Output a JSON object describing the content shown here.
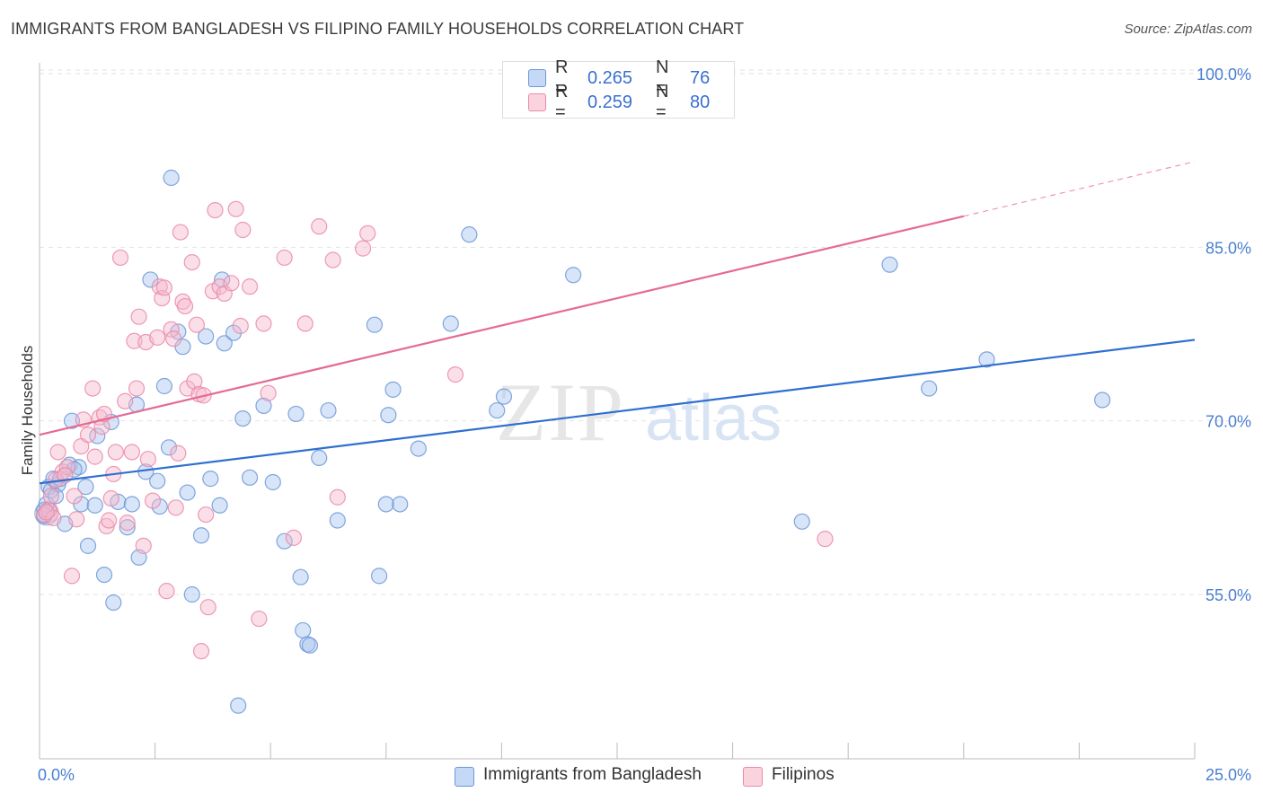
{
  "title": "IMMIGRANTS FROM BANGLADESH VS FILIPINO FAMILY HOUSEHOLDS CORRELATION CHART",
  "source": "Source: ZipAtlas.com",
  "watermark": {
    "zip": "ZIP",
    "atlas": "atlas"
  },
  "colors": {
    "blue_fill": "#a8c4ee",
    "blue_stroke": "#6b98d8",
    "blue_line": "#2f6fd0",
    "pink_fill": "#f6b8cc",
    "pink_stroke": "#e98aa8",
    "pink_line": "#e56a93",
    "axis_label": "#4a7fd0",
    "grid": "#e2e2e2"
  },
  "legend": {
    "rows": [
      {
        "r_label": "R =",
        "r_value": "0.265",
        "n_label": "N =",
        "n_value": "76",
        "color": "#a8c4ee"
      },
      {
        "r_label": "R =",
        "r_value": "0.259",
        "n_label": "N =",
        "n_value": "80",
        "color": "#f6b8cc"
      }
    ]
  },
  "bottom_legend": [
    {
      "label": "Immigrants from Bangladesh",
      "color": "#a8c4ee"
    },
    {
      "label": "Filipinos",
      "color": "#f6b8cc"
    }
  ],
  "chart_data": {
    "type": "scatter",
    "title": "IMMIGRANTS FROM BANGLADESH VS FILIPINO FAMILY HOUSEHOLDS CORRELATION CHART",
    "xlabel": "",
    "ylabel": "Family Households",
    "xlim": [
      0,
      25
    ],
    "ylim": [
      40,
      102
    ],
    "x_tick_labels": [
      "0.0%",
      "25.0%"
    ],
    "y_ticks": [
      55,
      70,
      85,
      100
    ],
    "y_tick_labels": [
      "55.0%",
      "70.0%",
      "85.0%",
      "100.0%"
    ],
    "grid": true,
    "legend_position": "top-center",
    "series": [
      {
        "name": "Immigrants from Bangladesh",
        "r": 0.265,
        "n": 76,
        "trend": {
          "x": [
            0,
            25
          ],
          "y": [
            64.6,
            77.0
          ],
          "dashed_from_x": null
        },
        "points": [
          [
            0.1,
            62.3
          ],
          [
            0.15,
            62.8
          ],
          [
            0.2,
            64.3
          ],
          [
            0.25,
            64.0
          ],
          [
            0.3,
            65.0
          ],
          [
            0.4,
            64.5
          ],
          [
            0.45,
            65.0
          ],
          [
            0.55,
            61.1
          ],
          [
            0.65,
            66.2
          ],
          [
            0.7,
            70.0
          ],
          [
            0.85,
            66.0
          ],
          [
            0.9,
            62.8
          ],
          [
            1.0,
            64.3
          ],
          [
            1.05,
            59.2
          ],
          [
            1.2,
            62.7
          ],
          [
            1.25,
            68.7
          ],
          [
            1.4,
            56.7
          ],
          [
            1.55,
            69.9
          ],
          [
            1.6,
            54.3
          ],
          [
            1.7,
            63.0
          ],
          [
            1.9,
            60.8
          ],
          [
            2.0,
            62.8
          ],
          [
            2.1,
            71.4
          ],
          [
            2.15,
            58.2
          ],
          [
            2.3,
            65.6
          ],
          [
            2.4,
            82.2
          ],
          [
            2.55,
            64.8
          ],
          [
            2.6,
            62.6
          ],
          [
            2.7,
            73.0
          ],
          [
            2.8,
            67.7
          ],
          [
            2.85,
            91.0
          ],
          [
            3.0,
            77.7
          ],
          [
            3.1,
            76.4
          ],
          [
            3.2,
            63.8
          ],
          [
            3.3,
            55.0
          ],
          [
            3.5,
            60.1
          ],
          [
            3.6,
            77.3
          ],
          [
            3.7,
            65.0
          ],
          [
            3.9,
            62.7
          ],
          [
            3.95,
            82.2
          ],
          [
            4.0,
            76.7
          ],
          [
            4.2,
            77.6
          ],
          [
            4.3,
            45.4
          ],
          [
            4.4,
            70.2
          ],
          [
            4.55,
            65.1
          ],
          [
            4.85,
            71.3
          ],
          [
            5.05,
            64.7
          ],
          [
            5.3,
            59.6
          ],
          [
            5.55,
            70.6
          ],
          [
            5.65,
            56.5
          ],
          [
            5.7,
            51.9
          ],
          [
            5.8,
            50.7
          ],
          [
            5.85,
            50.6
          ],
          [
            6.05,
            66.8
          ],
          [
            6.25,
            70.9
          ],
          [
            6.45,
            61.4
          ],
          [
            7.25,
            78.3
          ],
          [
            7.35,
            56.6
          ],
          [
            7.5,
            62.8
          ],
          [
            7.55,
            70.5
          ],
          [
            7.65,
            72.7
          ],
          [
            7.8,
            62.8
          ],
          [
            8.2,
            67.6
          ],
          [
            8.9,
            78.4
          ],
          [
            9.3,
            86.1
          ],
          [
            9.9,
            70.9
          ],
          [
            10.05,
            72.1
          ],
          [
            11.55,
            82.6
          ],
          [
            16.5,
            61.3
          ],
          [
            18.4,
            83.5
          ],
          [
            19.25,
            72.8
          ],
          [
            20.5,
            75.3
          ],
          [
            23.0,
            71.8
          ],
          [
            0.1,
            61.8
          ],
          [
            0.35,
            63.5
          ],
          [
            0.75,
            65.8
          ]
        ]
      },
      {
        "name": "Filipinos",
        "r": 0.259,
        "n": 80,
        "trend": {
          "x": [
            0,
            25
          ],
          "y": [
            68.8,
            92.4
          ],
          "dashed_from_x": 20.0
        },
        "points": [
          [
            0.1,
            61.9
          ],
          [
            0.2,
            62.3
          ],
          [
            0.25,
            63.5
          ],
          [
            0.3,
            61.6
          ],
          [
            0.4,
            67.3
          ],
          [
            0.5,
            65.6
          ],
          [
            0.6,
            66.0
          ],
          [
            0.7,
            56.6
          ],
          [
            0.75,
            63.5
          ],
          [
            0.8,
            61.5
          ],
          [
            0.9,
            67.8
          ],
          [
            0.95,
            70.1
          ],
          [
            1.05,
            68.8
          ],
          [
            1.15,
            72.8
          ],
          [
            1.2,
            66.9
          ],
          [
            1.3,
            70.3
          ],
          [
            1.35,
            69.5
          ],
          [
            1.45,
            60.9
          ],
          [
            1.5,
            61.4
          ],
          [
            1.55,
            63.3
          ],
          [
            1.6,
            65.4
          ],
          [
            1.65,
            67.3
          ],
          [
            1.75,
            84.1
          ],
          [
            1.85,
            71.7
          ],
          [
            1.9,
            61.2
          ],
          [
            2.0,
            67.3
          ],
          [
            2.05,
            76.9
          ],
          [
            2.1,
            72.8
          ],
          [
            2.15,
            79.0
          ],
          [
            2.25,
            59.2
          ],
          [
            2.3,
            76.8
          ],
          [
            2.35,
            66.7
          ],
          [
            2.45,
            63.1
          ],
          [
            2.55,
            77.2
          ],
          [
            2.6,
            81.6
          ],
          [
            2.65,
            80.6
          ],
          [
            2.7,
            81.5
          ],
          [
            2.75,
            55.3
          ],
          [
            2.85,
            77.9
          ],
          [
            2.9,
            77.1
          ],
          [
            3.0,
            67.2
          ],
          [
            3.05,
            86.3
          ],
          [
            3.1,
            80.3
          ],
          [
            3.15,
            79.9
          ],
          [
            3.2,
            72.8
          ],
          [
            3.3,
            83.7
          ],
          [
            3.35,
            73.4
          ],
          [
            3.4,
            78.3
          ],
          [
            3.45,
            72.3
          ],
          [
            3.5,
            50.1
          ],
          [
            3.55,
            72.2
          ],
          [
            3.65,
            53.9
          ],
          [
            3.75,
            81.2
          ],
          [
            3.8,
            88.2
          ],
          [
            3.9,
            81.6
          ],
          [
            4.0,
            81.0
          ],
          [
            4.15,
            81.9
          ],
          [
            4.25,
            88.3
          ],
          [
            4.35,
            78.2
          ],
          [
            4.4,
            86.5
          ],
          [
            4.55,
            81.6
          ],
          [
            4.75,
            52.9
          ],
          [
            4.85,
            78.4
          ],
          [
            4.95,
            72.4
          ],
          [
            5.3,
            84.1
          ],
          [
            5.5,
            59.9
          ],
          [
            5.75,
            78.4
          ],
          [
            6.05,
            86.8
          ],
          [
            6.35,
            83.9
          ],
          [
            6.45,
            63.4
          ],
          [
            7.0,
            84.9
          ],
          [
            7.1,
            86.2
          ],
          [
            9.0,
            74.0
          ],
          [
            17.0,
            59.8
          ],
          [
            0.15,
            62.1
          ],
          [
            0.35,
            64.9
          ],
          [
            0.55,
            65.3
          ],
          [
            1.4,
            70.6
          ],
          [
            2.95,
            62.5
          ],
          [
            3.6,
            61.9
          ]
        ]
      }
    ]
  }
}
